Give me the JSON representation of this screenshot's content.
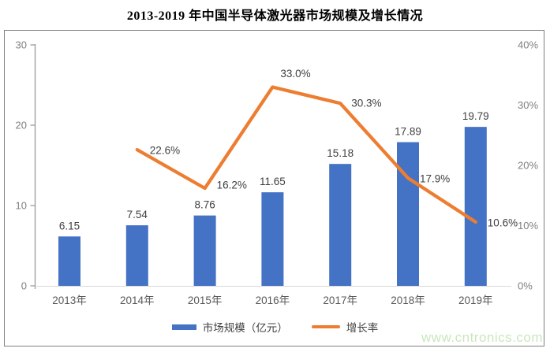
{
  "title": "2013-2019 年中国半导体激光器市场规模及增长情况",
  "watermark": "www.cntronics.com",
  "colors": {
    "bar": "#4472C4",
    "line": "#ED7D31",
    "axis_text": "#808080",
    "data_label": "#3F3F3F",
    "axis_line": "#9B9B9B",
    "baseline": "#D9D9D9",
    "watermark": "#C9E7BD"
  },
  "legend": {
    "items": [
      {
        "label": "市场规模（亿元）",
        "type": "bar"
      },
      {
        "label": "增长率",
        "type": "line"
      }
    ]
  },
  "chart_data": {
    "type": "combo",
    "title": "2013-2019 年中国半导体激光器市场规模及增长情况",
    "categories": [
      "2013年",
      "2014年",
      "2015年",
      "2016年",
      "2017年",
      "2018年",
      "2019年"
    ],
    "series": [
      {
        "name": "市场规模（亿元）",
        "type": "bar",
        "axis": "left",
        "color": "#4472C4",
        "values": [
          6.15,
          7.54,
          8.76,
          11.65,
          15.18,
          17.89,
          19.79
        ],
        "labels": [
          "6.15",
          "7.54",
          "8.76",
          "11.65",
          "15.18",
          "17.89",
          "19.79"
        ]
      },
      {
        "name": "增长率",
        "type": "line",
        "axis": "right",
        "color": "#ED7D31",
        "values": [
          null,
          22.6,
          16.2,
          33.0,
          30.3,
          17.9,
          10.6
        ],
        "labels": [
          null,
          "22.6%",
          "16.2%",
          "33.0%",
          "30.3%",
          "17.9%",
          "10.6%"
        ]
      }
    ],
    "left_axis": {
      "min": 0,
      "max": 30,
      "tick_values": [
        0,
        10,
        20,
        30
      ],
      "tick_labels": [
        "0",
        "10",
        "20",
        "30"
      ]
    },
    "right_axis": {
      "min": 0,
      "max": 40,
      "tick_values": [
        0,
        10,
        20,
        30,
        40
      ],
      "tick_labels": [
        "0%",
        "10%",
        "20%",
        "30%",
        "40%"
      ]
    },
    "grid": false,
    "legend_position": "bottom"
  }
}
